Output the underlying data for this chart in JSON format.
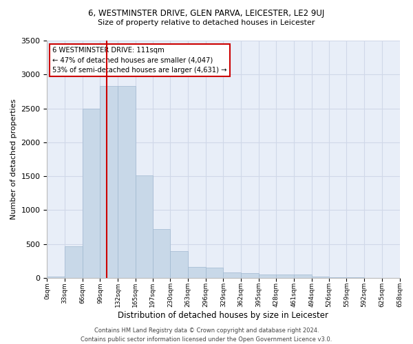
{
  "title1": "6, WESTMINSTER DRIVE, GLEN PARVA, LEICESTER, LE2 9UJ",
  "title2": "Size of property relative to detached houses in Leicester",
  "xlabel": "Distribution of detached houses by size in Leicester",
  "ylabel": "Number of detached properties",
  "bar_edges": [
    0,
    33,
    66,
    99,
    132,
    165,
    197,
    230,
    263,
    296,
    329,
    362,
    395,
    428,
    461,
    494,
    526,
    559,
    592,
    625,
    658
  ],
  "bar_heights": [
    20,
    470,
    2500,
    2830,
    2830,
    1510,
    720,
    390,
    160,
    155,
    80,
    65,
    50,
    45,
    45,
    15,
    5,
    5,
    0,
    0
  ],
  "bar_color": "#c8d8e8",
  "bar_edgecolor": "#a0b8d0",
  "vline_x": 111,
  "vline_color": "#cc0000",
  "annotation_line1": "6 WESTMINSTER DRIVE: 111sqm",
  "annotation_line2": "← 47% of detached houses are smaller (4,047)",
  "annotation_line3": "53% of semi-detached houses are larger (4,631) →",
  "ylim": [
    0,
    3500
  ],
  "yticks": [
    0,
    500,
    1000,
    1500,
    2000,
    2500,
    3000,
    3500
  ],
  "xtick_labels": [
    "0sqm",
    "33sqm",
    "66sqm",
    "99sqm",
    "132sqm",
    "165sqm",
    "197sqm",
    "230sqm",
    "263sqm",
    "296sqm",
    "329sqm",
    "362sqm",
    "395sqm",
    "428sqm",
    "461sqm",
    "494sqm",
    "526sqm",
    "559sqm",
    "592sqm",
    "625sqm",
    "658sqm"
  ],
  "grid_color": "#d0d8e8",
  "background_color": "#e8eef8",
  "footer_text": "Contains HM Land Registry data © Crown copyright and database right 2024.\nContains public sector information licensed under the Open Government Licence v3.0.",
  "fig_width": 6.0,
  "fig_height": 5.0,
  "dpi": 100
}
